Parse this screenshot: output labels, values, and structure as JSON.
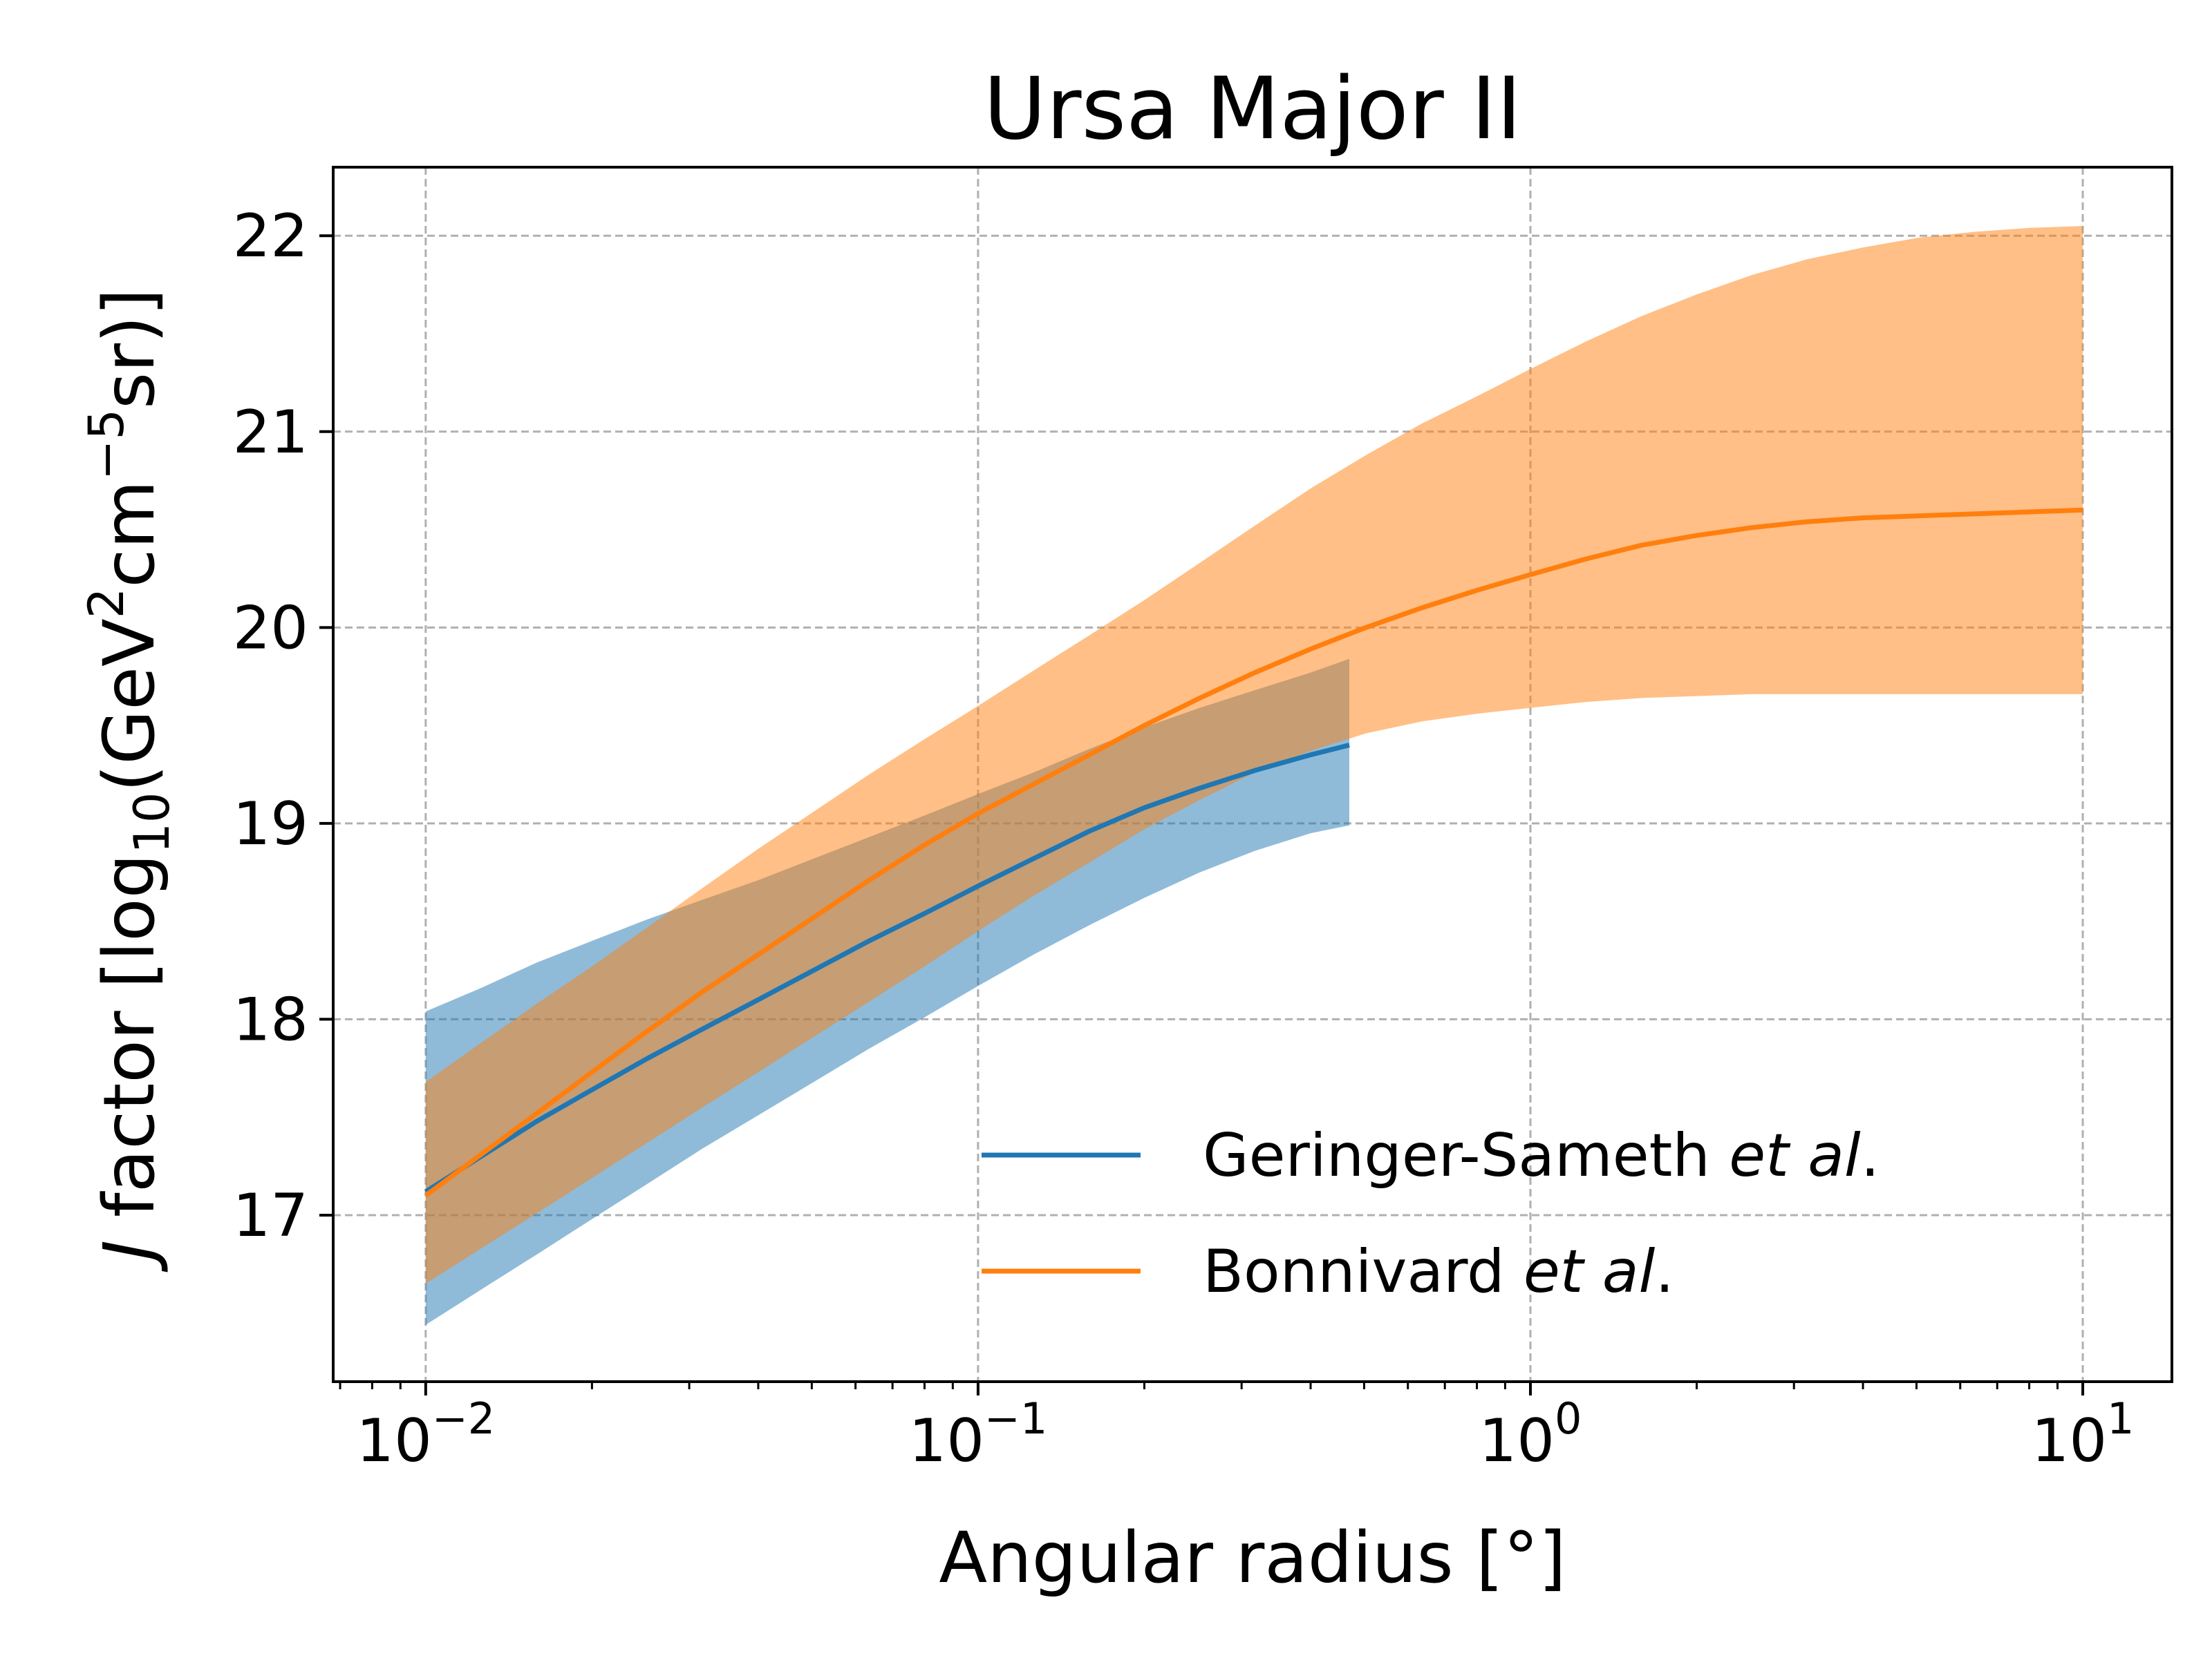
{
  "chart_data": {
    "type": "line",
    "title": "Ursa Major II",
    "xlabel": {
      "prefix": "Angular radius [°]"
    },
    "ylabel": {
      "italic": "J",
      "text": " factor [log",
      "sub": "10",
      "mid1": "(GeV",
      "sup1": "2",
      "mid2": "cm",
      "sup2": "−5",
      "end": "sr)]"
    },
    "x_scale": "log",
    "xlim": [
      0.0068,
      14.5
    ],
    "ylim": [
      16.15,
      22.35
    ],
    "x_ticks": [
      {
        "value": 0.01,
        "base": "10",
        "exp": "−2"
      },
      {
        "value": 0.1,
        "base": "10",
        "exp": "−1"
      },
      {
        "value": 1,
        "base": "10",
        "exp": "0"
      },
      {
        "value": 10,
        "base": "10",
        "exp": "1"
      }
    ],
    "y_ticks": [
      17,
      18,
      19,
      20,
      21,
      22
    ],
    "grid": true,
    "legend_position": "lower-right",
    "series": [
      {
        "name_plain": "Geringer-Sameth ",
        "name_italic": "et al",
        "name_end": ".",
        "color": "#1f77b4",
        "band_color": "#1f77b4",
        "band_opacity": 0.5,
        "x": [
          0.01,
          0.0126,
          0.0159,
          0.02,
          0.0252,
          0.0317,
          0.04,
          0.0504,
          0.0635,
          0.08,
          0.1,
          0.126,
          0.159,
          0.2,
          0.252,
          0.317,
          0.4,
          0.47
        ],
        "y": [
          17.12,
          17.3,
          17.48,
          17.64,
          17.8,
          17.95,
          18.1,
          18.25,
          18.4,
          18.54,
          18.68,
          18.82,
          18.96,
          19.08,
          19.18,
          19.27,
          19.35,
          19.4
        ],
        "upper": [
          18.04,
          18.16,
          18.29,
          18.4,
          18.51,
          18.61,
          18.71,
          18.82,
          18.93,
          19.04,
          19.15,
          19.26,
          19.38,
          19.49,
          19.59,
          19.68,
          19.77,
          19.84
        ],
        "lower": [
          16.44,
          16.62,
          16.8,
          16.98,
          17.16,
          17.34,
          17.51,
          17.68,
          17.85,
          18.01,
          18.17,
          18.33,
          18.48,
          18.62,
          18.75,
          18.86,
          18.95,
          18.99
        ]
      },
      {
        "name_plain": "Bonnivard ",
        "name_italic": "et al",
        "name_end": ".",
        "color": "#ff7f0e",
        "band_color": "#ff7f0e",
        "band_opacity": 0.5,
        "x": [
          0.01,
          0.0126,
          0.0159,
          0.02,
          0.0252,
          0.0317,
          0.04,
          0.0504,
          0.0635,
          0.08,
          0.1,
          0.126,
          0.159,
          0.2,
          0.252,
          0.317,
          0.4,
          0.504,
          0.635,
          0.8,
          1.0,
          1.26,
          1.59,
          2.0,
          2.52,
          3.17,
          4.0,
          5.04,
          6.35,
          8.0,
          10.0
        ],
        "y": [
          17.1,
          17.31,
          17.52,
          17.73,
          17.94,
          18.14,
          18.33,
          18.52,
          18.71,
          18.89,
          19.05,
          19.2,
          19.35,
          19.5,
          19.64,
          19.77,
          19.89,
          20.0,
          20.1,
          20.19,
          20.27,
          20.35,
          20.42,
          20.47,
          20.51,
          20.54,
          20.56,
          20.57,
          20.58,
          20.59,
          20.6
        ],
        "upper": [
          17.68,
          17.88,
          18.08,
          18.27,
          18.47,
          18.67,
          18.87,
          19.06,
          19.25,
          19.43,
          19.6,
          19.78,
          19.96,
          20.14,
          20.33,
          20.52,
          20.71,
          20.88,
          21.04,
          21.18,
          21.32,
          21.46,
          21.59,
          21.7,
          21.8,
          21.88,
          21.94,
          21.99,
          22.02,
          22.04,
          22.05
        ],
        "lower": [
          16.65,
          16.83,
          17.01,
          17.19,
          17.37,
          17.55,
          17.73,
          17.91,
          18.09,
          18.27,
          18.45,
          18.63,
          18.8,
          18.97,
          19.12,
          19.26,
          19.37,
          19.46,
          19.52,
          19.56,
          19.59,
          19.62,
          19.64,
          19.65,
          19.66,
          19.66,
          19.66,
          19.66,
          19.66,
          19.66,
          19.66
        ]
      }
    ]
  }
}
